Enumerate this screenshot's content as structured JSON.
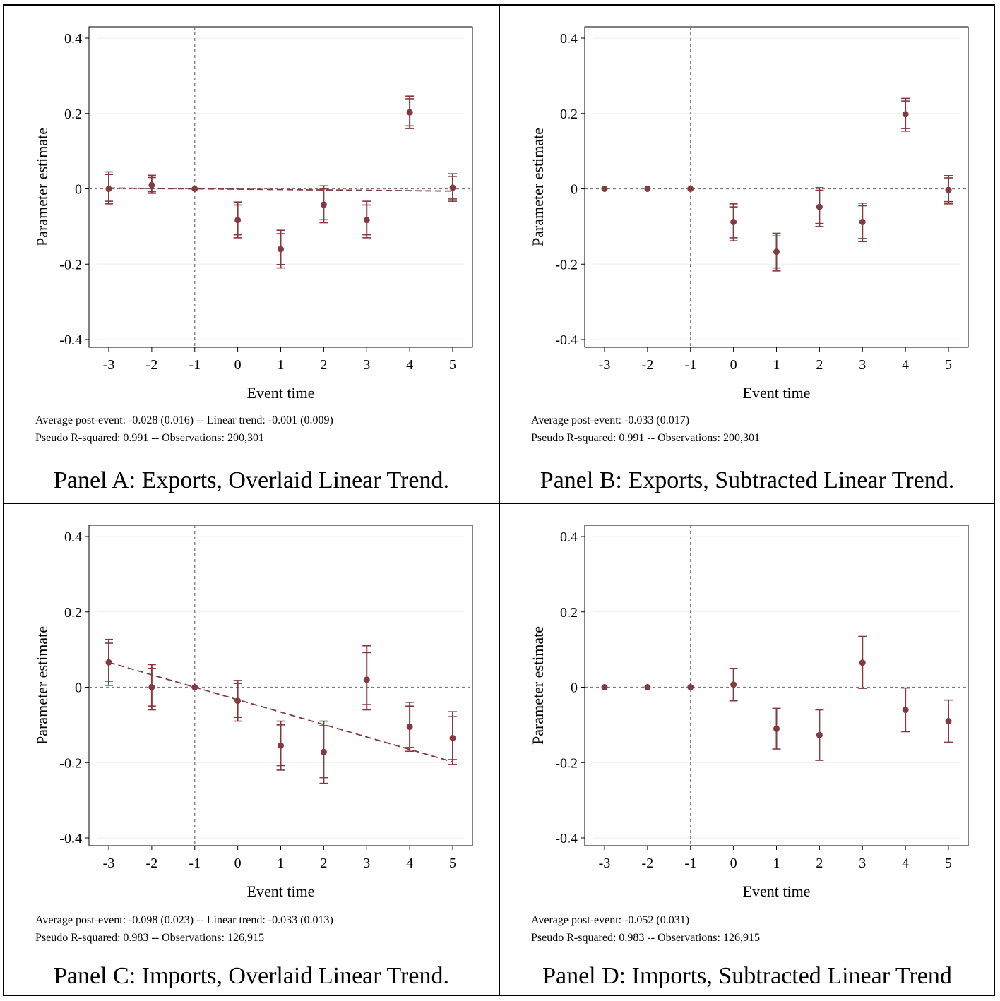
{
  "style": {
    "marker_color": "#833b3f",
    "ref_line_color": "#7a7a7a",
    "grid_color": "#eeeeee",
    "axis_color": "#000000"
  },
  "chart_data": [
    {
      "type": "scatter",
      "caption": "Panel A: Exports, Overlaid Linear Trend.",
      "note_line1": "Average post-event: -0.028 (0.016) -- Linear trend: -0.001 (0.009)",
      "note_line2": "Pseudo R-squared: 0.991 -- Observations: 200,301",
      "xlabel": "Event time",
      "ylabel": "Parameter estimate",
      "xticks": [
        "-3",
        "-2",
        "-1",
        "0",
        "1",
        "2",
        "3",
        "4",
        "5"
      ],
      "yticks": [
        "0.4",
        "0.2",
        "0",
        "-0.2",
        "-0.4"
      ],
      "xlim": [
        -3,
        5
      ],
      "ylim": [
        -0.4,
        0.4
      ],
      "x": [
        -3,
        -2,
        -1,
        0,
        1,
        2,
        3,
        4,
        5
      ],
      "estimate": [
        0.0,
        0.01,
        0.0,
        -0.083,
        -0.16,
        -0.042,
        -0.083,
        0.203,
        0.003
      ],
      "ci95_low": [
        -0.04,
        -0.012,
        0.0,
        -0.13,
        -0.21,
        -0.09,
        -0.13,
        0.16,
        -0.033
      ],
      "ci95_high": [
        0.045,
        0.036,
        0.0,
        -0.035,
        -0.11,
        0.008,
        -0.033,
        0.246,
        0.04
      ],
      "ci90_low": [
        -0.033,
        -0.008,
        0.0,
        -0.122,
        -0.201,
        -0.082,
        -0.122,
        0.167,
        -0.027
      ],
      "ci90_high": [
        0.038,
        0.03,
        0.0,
        -0.043,
        -0.119,
        0.0,
        -0.043,
        0.239,
        0.033
      ],
      "trend_line": {
        "x": [
          -3,
          5
        ],
        "y": [
          0.002,
          -0.006
        ]
      },
      "cap_style": "cross"
    },
    {
      "type": "scatter",
      "caption": "Panel B: Exports, Subtracted Linear Trend.",
      "note_line1": "Average post-event: -0.033 (0.017)",
      "note_line2": "Pseudo R-squared: 0.991 -- Observations: 200,301",
      "xlabel": "Event time",
      "ylabel": "Parameter estimate",
      "xticks": [
        "-3",
        "-2",
        "-1",
        "0",
        "1",
        "2",
        "3",
        "4",
        "5"
      ],
      "yticks": [
        "0.4",
        "0.2",
        "0",
        "-0.2",
        "-0.4"
      ],
      "xlim": [
        -3,
        5
      ],
      "ylim": [
        -0.4,
        0.4
      ],
      "x": [
        -3,
        -2,
        -1,
        0,
        1,
        2,
        3,
        4,
        5
      ],
      "estimate": [
        0.0,
        0.0,
        0.0,
        -0.088,
        -0.167,
        -0.048,
        -0.088,
        0.198,
        -0.003
      ],
      "ci95_low": [
        0.0,
        0.0,
        0.0,
        -0.138,
        -0.218,
        -0.1,
        -0.14,
        0.153,
        -0.04
      ],
      "ci95_high": [
        0.0,
        0.0,
        0.0,
        -0.04,
        -0.118,
        0.003,
        -0.038,
        0.24,
        0.035
      ],
      "ci90_low": [
        0.0,
        0.0,
        0.0,
        -0.13,
        -0.21,
        -0.092,
        -0.132,
        0.16,
        -0.034
      ],
      "ci90_high": [
        0.0,
        0.0,
        0.0,
        -0.048,
        -0.125,
        -0.004,
        -0.045,
        0.233,
        0.029
      ],
      "cap_style": "cross"
    },
    {
      "type": "scatter",
      "caption": "Panel C: Imports, Overlaid Linear Trend.",
      "note_line1": "Average post-event: -0.098 (0.023) -- Linear trend: -0.033 (0.013)",
      "note_line2": "Pseudo R-squared: 0.983 -- Observations: 126,915",
      "xlabel": "Event time",
      "ylabel": "Parameter estimate",
      "xticks": [
        "-3",
        "-2",
        "-1",
        "0",
        "1",
        "2",
        "3",
        "4",
        "5"
      ],
      "yticks": [
        "0.4",
        "0.2",
        "0",
        "-0.2",
        "-0.4"
      ],
      "xlim": [
        -3,
        5
      ],
      "ylim": [
        -0.4,
        0.4
      ],
      "x": [
        -3,
        -2,
        -1,
        0,
        1,
        2,
        3,
        4,
        5
      ],
      "estimate": [
        0.066,
        0.0,
        0.0,
        -0.036,
        -0.155,
        -0.172,
        0.02,
        -0.105,
        -0.135
      ],
      "ci95_low": [
        0.005,
        -0.06,
        0.0,
        -0.09,
        -0.22,
        -0.255,
        -0.06,
        -0.17,
        -0.205
      ],
      "ci95_high": [
        0.127,
        0.06,
        0.0,
        0.018,
        -0.09,
        -0.09,
        0.11,
        -0.04,
        -0.065
      ],
      "ci90_low": [
        0.016,
        -0.05,
        0.0,
        -0.08,
        -0.208,
        -0.24,
        -0.046,
        -0.16,
        -0.192
      ],
      "ci90_high": [
        0.117,
        0.05,
        0.0,
        0.01,
        -0.1,
        -0.102,
        0.092,
        -0.05,
        -0.078
      ],
      "trend_line": {
        "x": [
          -3,
          5
        ],
        "y": [
          0.066,
          -0.198
        ]
      },
      "cap_style": "cross"
    },
    {
      "type": "scatter",
      "caption": "Panel D: Imports, Subtracted Linear Trend",
      "note_line1": "Average post-event: -0.052 (0.031)",
      "note_line2": "Pseudo R-squared: 0.983 -- Observations: 126,915",
      "xlabel": "Event time",
      "ylabel": "Parameter estimate",
      "xticks": [
        "-3",
        "-2",
        "-1",
        "0",
        "1",
        "2",
        "3",
        "4",
        "5"
      ],
      "yticks": [
        "0.4",
        "0.2",
        "0",
        "-0.2",
        "-0.4"
      ],
      "xlim": [
        -3,
        5
      ],
      "ylim": [
        -0.4,
        0.4
      ],
      "x": [
        -3,
        -2,
        -1,
        0,
        1,
        2,
        3,
        4,
        5
      ],
      "estimate": [
        0.0,
        0.0,
        0.0,
        0.007,
        -0.11,
        -0.127,
        0.065,
        -0.06,
        -0.09
      ],
      "ci95_low": [
        0.0,
        0.0,
        0.0,
        -0.036,
        -0.164,
        -0.194,
        -0.003,
        -0.118,
        -0.146
      ],
      "ci95_high": [
        0.0,
        0.0,
        0.0,
        0.05,
        -0.056,
        -0.06,
        0.135,
        -0.002,
        -0.034
      ],
      "cap_style": "bar"
    }
  ]
}
